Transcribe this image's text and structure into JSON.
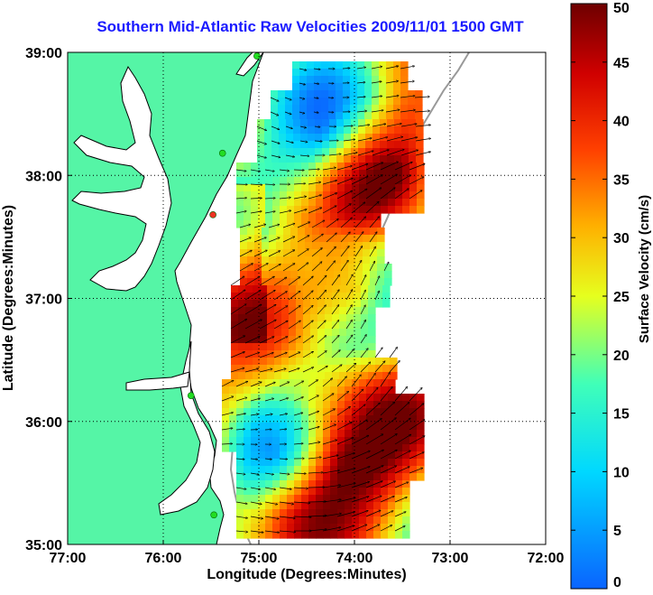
{
  "title": "Southern Mid-Atlantic Raw Velocities 2009/11/01 1500 GMT",
  "colors": {
    "land": "#55f5a6",
    "coast": "#000000",
    "shelf_contour": "#999999",
    "station": "#22dd22",
    "station_down": "#ee3322"
  },
  "axes": {
    "xlabel": "Longitude (Degrees:Minutes)",
    "ylabel": "Latitude (Degrees:Minutes)",
    "xlim": [
      -77,
      -72
    ],
    "ylim": [
      35,
      39
    ],
    "x_ticks": [
      {
        "value": -77,
        "label": "77:00"
      },
      {
        "value": -76,
        "label": "76:00"
      },
      {
        "value": -75,
        "label": "75:00"
      },
      {
        "value": -74,
        "label": "74:00"
      },
      {
        "value": -73,
        "label": "73:00"
      },
      {
        "value": -72,
        "label": "72:00"
      }
    ],
    "y_ticks": [
      {
        "value": 35,
        "label": "35:00"
      },
      {
        "value": 36,
        "label": "36:00"
      },
      {
        "value": 37,
        "label": "37:00"
      },
      {
        "value": 38,
        "label": "38:00"
      },
      {
        "value": 39,
        "label": "39:00"
      }
    ],
    "grid": "dotted"
  },
  "colorbar": {
    "label": "Surface Velocity (cm/s)",
    "min": 0,
    "max": 50,
    "ticks": [
      {
        "value": 0,
        "label": "0"
      },
      {
        "value": 5,
        "label": "5"
      },
      {
        "value": 10,
        "label": "10"
      },
      {
        "value": 15,
        "label": "15"
      },
      {
        "value": 20,
        "label": "20"
      },
      {
        "value": 25,
        "label": "25"
      },
      {
        "value": 30,
        "label": "30"
      },
      {
        "value": 35,
        "label": "35"
      },
      {
        "value": 40,
        "label": "40"
      },
      {
        "value": 45,
        "label": "45"
      },
      {
        "value": 50,
        "label": "50"
      }
    ]
  },
  "stations": [
    {
      "lon": -75.02,
      "lat": 38.97,
      "status": "active"
    },
    {
      "lon": -75.38,
      "lat": 38.18,
      "status": "active"
    },
    {
      "lon": -75.48,
      "lat": 37.68,
      "status": "down"
    },
    {
      "lon": -75.71,
      "lat": 36.21,
      "status": "active"
    },
    {
      "lon": -75.47,
      "lat": 35.24,
      "status": "active"
    }
  ]
}
